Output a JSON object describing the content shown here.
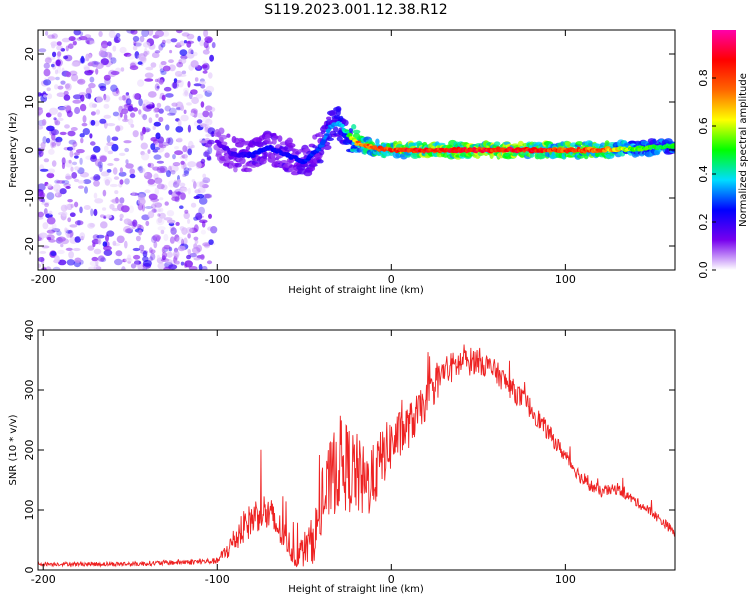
{
  "title": "S119.2023.001.12.38.R12",
  "colors": {
    "snr_line": "#ee2222",
    "axes": "#000000",
    "colorbar_stops": [
      "#ffffff",
      "#7700ee",
      "#0000ff",
      "#00ddff",
      "#00ff00",
      "#ffff00",
      "#ff6600",
      "#ff0000",
      "#ff00aa"
    ]
  },
  "chart_data": [
    {
      "type": "heatmap",
      "name": "spectrogram",
      "xlabel": "Height of straight line (km)",
      "ylabel": "Frequency (Hz)",
      "xlim": [
        -203,
        163
      ],
      "ylim": [
        -25,
        25
      ],
      "xticks": [
        -200,
        -100,
        0,
        100
      ],
      "xtick_labels": [
        "-200",
        "-100",
        "0",
        "100"
      ],
      "yticks": [
        -20,
        -10,
        0,
        10,
        20
      ],
      "ytick_labels": [
        "-20",
        "-10",
        "0",
        "10",
        "20"
      ],
      "noise_region_x": [
        -203,
        -102
      ],
      "ridge": {
        "x": [
          -100,
          -90,
          -80,
          -70,
          -60,
          -50,
          -40,
          -35,
          -30,
          -25,
          -20,
          -10,
          0,
          10,
          20,
          40,
          60,
          80,
          100,
          120,
          140,
          163
        ],
        "y": [
          1.5,
          -1,
          -1,
          0.5,
          -1,
          -2.5,
          1,
          5,
          5.5,
          3.5,
          1.5,
          0.5,
          0,
          0,
          0,
          0,
          0,
          0,
          0,
          0,
          0.3,
          0.8
        ],
        "amplitude": [
          0.15,
          0.2,
          0.25,
          0.25,
          0.25,
          0.25,
          0.3,
          0.35,
          0.35,
          0.45,
          0.75,
          0.8,
          0.85,
          0.9,
          0.9,
          0.9,
          0.9,
          0.9,
          0.85,
          0.8,
          0.55,
          0.5
        ]
      },
      "colorbar": {
        "label": "Normalized spectral amplitude",
        "range": [
          0.0,
          1.0
        ],
        "ticks": [
          0.0,
          0.2,
          0.4,
          0.6,
          0.8
        ],
        "tick_labels": [
          "0.0",
          "0.2",
          "0.4",
          "0.6",
          "0.8"
        ]
      }
    },
    {
      "type": "line",
      "name": "snr",
      "xlabel": "Height of straight line (km)",
      "ylabel": "SNR (10 * v/v)",
      "xlim": [
        -203,
        163
      ],
      "ylim": [
        0,
        400
      ],
      "xticks": [
        -200,
        -100,
        0,
        100
      ],
      "xtick_labels": [
        "-200",
        "-100",
        "0",
        "100"
      ],
      "yticks": [
        0,
        100,
        200,
        300,
        400
      ],
      "ytick_labels": [
        "0",
        "100",
        "200",
        "300",
        "400"
      ],
      "series": [
        {
          "name": "SNR",
          "envelope": {
            "x": [
              -203,
              -150,
              -100,
              -95,
              -85,
              -75,
              -70,
              -60,
              -55,
              -45,
              -40,
              -35,
              -30,
              -25,
              -20,
              -15,
              -10,
              -5,
              0,
              10,
              20,
              30,
              40,
              50,
              60,
              70,
              80,
              90,
              100,
              110,
              120,
              130,
              140,
              150,
              160,
              163
            ],
            "y": [
              10,
              10,
              15,
              30,
              70,
              100,
              90,
              50,
              20,
              50,
              100,
              150,
              180,
              170,
              160,
              140,
              155,
              190,
              210,
              240,
              280,
              330,
              345,
              350,
              330,
              300,
              270,
              230,
              190,
              150,
              130,
              135,
              115,
              95,
              70,
              60
            ]
          },
          "noise_amplitude": {
            "x": [
              -203,
              -100,
              -90,
              -70,
              -55,
              -45,
              -30,
              -20,
              -10,
              0,
              20,
              40,
              60,
              80,
              100,
              120,
              140,
              163
            ],
            "y": [
              3,
              5,
              25,
              35,
              20,
              40,
              80,
              70,
              55,
              45,
              30,
              25,
              20,
              18,
              12,
              10,
              8,
              8
            ]
          }
        }
      ]
    }
  ]
}
